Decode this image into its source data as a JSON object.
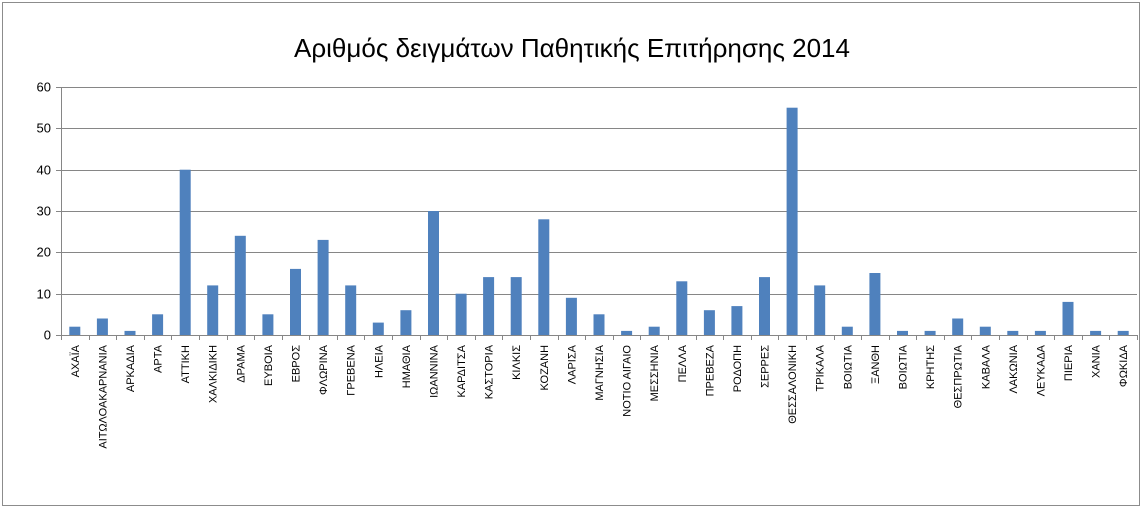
{
  "chart_data": {
    "type": "bar",
    "title": "Αριθμός δειγμάτων Παθητικής Επιτήρησης 2014",
    "xlabel": "",
    "ylabel": "",
    "ylim": [
      0,
      60
    ],
    "yticks": [
      0,
      10,
      20,
      30,
      40,
      50,
      60
    ],
    "grid": true,
    "legend": "none",
    "bar_color": "#4f81bd",
    "categories": [
      "ΑΧΑΪΑ",
      "ΑΙΤΩΛΟΑΚΑΡΝΑΝΙΑ",
      "ΑΡΚΑΔΙΑ",
      "ΑΡΤΑ",
      "ΑΤΤΙΚΗ",
      "ΧΑΛΚΙΔΙΚΗ",
      "ΔΡΑΜΑ",
      "ΕΥΒΟΙΑ",
      "ΕΒΡΟΣ",
      "ΦΛΩΡΙΝΑ",
      "ΓΡΕΒΕΝΑ",
      "ΗΛΕΙΑ",
      "ΗΜΑΘΙΑ",
      "ΙΩΑΝΝΙΝΑ",
      "ΚΑΡΔΙΤΣΑ",
      "ΚΑΣΤΟΡΙΑ",
      "ΚΙΛΚΙΣ",
      "ΚΟΖΑΝΗ",
      "ΛΑΡΙΣΑ",
      "ΜΑΓΝΗΣΙΑ",
      "ΝΟΤΙΟ ΑΙΓΑΙΟ",
      "ΜΕΣΣΗΝΙΑ",
      "ΠΕΛΛΑ",
      "ΠΡΕΒΕΖΑ",
      "ΡΟΔΟΠΗ",
      "ΣΕΡΡΕΣ",
      "ΘΕΣΣΑΛΟΝΙΚΗ",
      "ΤΡΙΚΑΛΑ",
      "ΒΟΙΩΤΙΑ",
      "ΞΑΝΘΗ",
      "ΒΟΙΩΤΙΑ",
      "ΚΡΗΤΗΣ",
      "ΘΕΣΠΡΩΤΙΑ",
      "ΚΑΒΑΛΑ",
      "ΛΑΚΩΝΙΑ",
      "ΛΕΥΚΑΔΑ",
      "ΠΙΕΡΙΑ",
      "ΧΑΝΙΑ",
      "ΦΩΚΙΔΑ"
    ],
    "values": [
      2,
      4,
      1,
      5,
      40,
      12,
      24,
      5,
      16,
      23,
      12,
      3,
      6,
      30,
      10,
      14,
      14,
      28,
      9,
      5,
      1,
      2,
      13,
      6,
      7,
      14,
      55,
      12,
      2,
      15,
      1,
      1,
      4,
      2,
      1,
      1,
      8,
      1,
      1
    ]
  }
}
